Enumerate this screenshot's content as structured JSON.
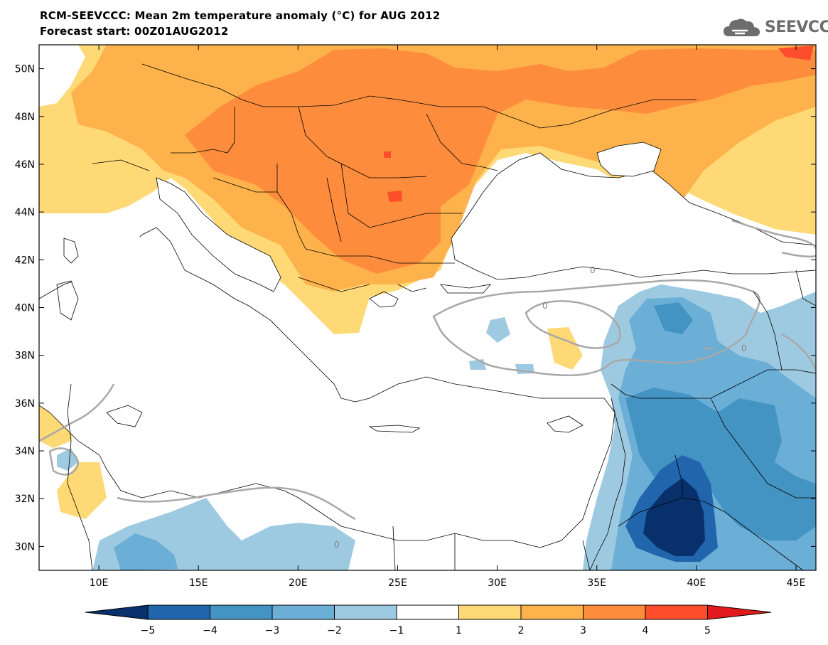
{
  "title": {
    "line1": "RCM-SEEVCCC: Mean 2m temperature anomaly (°C) for AUG 2012",
    "line2": "Forecast start: 00Z01AUG2012"
  },
  "logo": {
    "text": "SEEVCCC",
    "icon": "cloud-icon"
  },
  "map": {
    "lat_labels": [
      "50N",
      "48N",
      "46N",
      "44N",
      "42N",
      "40N",
      "38N",
      "36N",
      "34N",
      "32N",
      "30N"
    ],
    "lat_values": [
      50,
      48,
      46,
      44,
      42,
      40,
      38,
      36,
      34,
      32,
      30
    ],
    "lon_labels": [
      "10E",
      "15E",
      "20E",
      "25E",
      "30E",
      "35E",
      "40E",
      "45E"
    ],
    "lon_values": [
      10,
      15,
      20,
      25,
      30,
      35,
      40,
      45
    ],
    "extent": {
      "lon_min": 7,
      "lon_max": 46,
      "lat_min": 29,
      "lat_max": 51
    },
    "contour_labels": [
      "0",
      "0",
      "0",
      "0"
    ]
  },
  "colorbar": {
    "tick_labels": [
      "−5",
      "−4",
      "−3",
      "−2",
      "−1",
      "1",
      "2",
      "3",
      "4",
      "5"
    ],
    "colors": [
      "#08306b",
      "#2166ac",
      "#4393c3",
      "#6baed6",
      "#9ecae1",
      "#ffffff",
      "#fed976",
      "#feb24c",
      "#fd8d3c",
      "#fc4e2a",
      "#e31a1c"
    ]
  }
}
